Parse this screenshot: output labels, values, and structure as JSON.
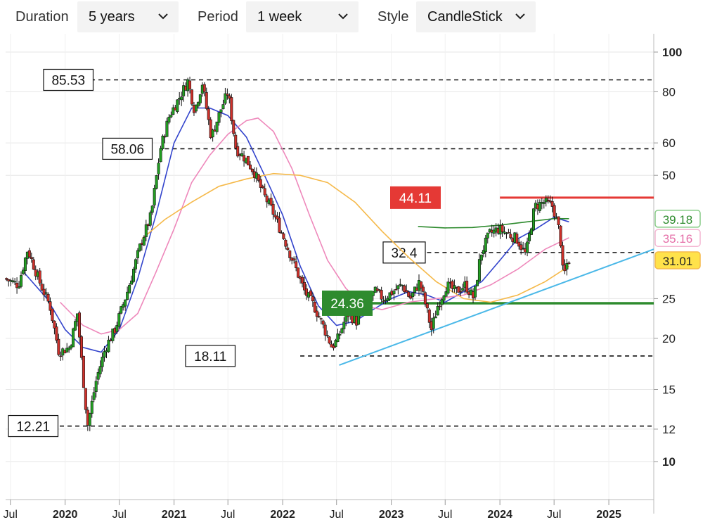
{
  "toolbar": {
    "duration": {
      "label": "Duration",
      "value": "5 years"
    },
    "period": {
      "label": "Period",
      "value": "1 week"
    },
    "style": {
      "label": "Style",
      "value": "CandleStick"
    }
  },
  "colors": {
    "up": "#22a022",
    "down": "#d0302a",
    "ma_short": "#3344cc",
    "ma_mid": "#ee88bb",
    "ma_long": "#f5b94a",
    "ma_xlong": "#2e8b2e",
    "trendline": "#4ab8e8",
    "resistance": "#e53935",
    "support": "#2e8b2e"
  },
  "chart_data": {
    "type": "candlestick",
    "y_scale": "log",
    "ylim": [
      10,
      100
    ],
    "y_ticks": [
      10,
      12,
      15,
      20,
      25,
      50,
      60,
      80,
      100
    ],
    "y_tick_labels": [
      "10",
      "12",
      "15",
      "20",
      "25",
      "50",
      "60",
      "80",
      "100"
    ],
    "x_range": [
      "2019-06-15",
      "2025-06-01"
    ],
    "x_ticks": [
      {
        "date": "2019-07-01",
        "label": "Jul",
        "bold": false
      },
      {
        "date": "2020-01-01",
        "label": "2020",
        "bold": true
      },
      {
        "date": "2020-07-01",
        "label": "Jul",
        "bold": false
      },
      {
        "date": "2021-01-01",
        "label": "2021",
        "bold": true
      },
      {
        "date": "2021-07-01",
        "label": "Jul",
        "bold": false
      },
      {
        "date": "2022-01-01",
        "label": "2022",
        "bold": true
      },
      {
        "date": "2022-07-01",
        "label": "Jul",
        "bold": false
      },
      {
        "date": "2023-01-01",
        "label": "2023",
        "bold": true
      },
      {
        "date": "2023-07-01",
        "label": "Jul",
        "bold": false
      },
      {
        "date": "2024-01-01",
        "label": "2024",
        "bold": true
      },
      {
        "date": "2024-07-01",
        "label": "Jul",
        "bold": false
      },
      {
        "date": "2025-01-01",
        "label": "2025",
        "bold": true
      }
    ],
    "price_path": [
      {
        "date": "2019-06-15",
        "price": 28
      },
      {
        "date": "2019-08-01",
        "price": 27
      },
      {
        "date": "2019-09-01",
        "price": 33
      },
      {
        "date": "2019-10-15",
        "price": 27
      },
      {
        "date": "2019-11-15",
        "price": 24
      },
      {
        "date": "2019-12-15",
        "price": 18.5
      },
      {
        "date": "2020-01-20",
        "price": 19
      },
      {
        "date": "2020-02-15",
        "price": 23
      },
      {
        "date": "2020-03-20",
        "price": 12.2
      },
      {
        "date": "2020-04-20",
        "price": 16
      },
      {
        "date": "2020-05-20",
        "price": 19
      },
      {
        "date": "2020-06-20",
        "price": 21
      },
      {
        "date": "2020-08-01",
        "price": 26
      },
      {
        "date": "2020-09-15",
        "price": 34
      },
      {
        "date": "2020-10-20",
        "price": 40
      },
      {
        "date": "2020-11-20",
        "price": 58
      },
      {
        "date": "2020-12-20",
        "price": 70
      },
      {
        "date": "2021-01-25",
        "price": 78
      },
      {
        "date": "2021-02-20",
        "price": 85
      },
      {
        "date": "2021-03-15",
        "price": 72
      },
      {
        "date": "2021-04-10",
        "price": 84
      },
      {
        "date": "2021-05-10",
        "price": 62
      },
      {
        "date": "2021-06-10",
        "price": 72
      },
      {
        "date": "2021-07-05",
        "price": 80
      },
      {
        "date": "2021-08-01",
        "price": 58
      },
      {
        "date": "2021-09-01",
        "price": 55
      },
      {
        "date": "2021-10-01",
        "price": 51
      },
      {
        "date": "2021-11-01",
        "price": 45
      },
      {
        "date": "2021-12-01",
        "price": 41
      },
      {
        "date": "2022-01-10",
        "price": 35
      },
      {
        "date": "2022-02-15",
        "price": 30
      },
      {
        "date": "2022-03-20",
        "price": 26
      },
      {
        "date": "2022-04-20",
        "price": 24
      },
      {
        "date": "2022-05-20",
        "price": 21.5
      },
      {
        "date": "2022-06-20",
        "price": 19
      },
      {
        "date": "2022-07-10",
        "price": 20
      },
      {
        "date": "2022-08-10",
        "price": 23
      },
      {
        "date": "2022-09-10",
        "price": 22
      },
      {
        "date": "2022-10-10",
        "price": 24
      },
      {
        "date": "2022-11-10",
        "price": 26
      },
      {
        "date": "2022-12-10",
        "price": 25
      },
      {
        "date": "2023-01-10",
        "price": 26
      },
      {
        "date": "2023-02-10",
        "price": 27
      },
      {
        "date": "2023-03-10",
        "price": 25
      },
      {
        "date": "2023-04-10",
        "price": 27.5
      },
      {
        "date": "2023-05-01",
        "price": 24
      },
      {
        "date": "2023-05-20",
        "price": 21
      },
      {
        "date": "2023-06-10",
        "price": 24
      },
      {
        "date": "2023-07-10",
        "price": 27
      },
      {
        "date": "2023-08-10",
        "price": 26
      },
      {
        "date": "2023-09-10",
        "price": 27
      },
      {
        "date": "2023-10-10",
        "price": 25
      },
      {
        "date": "2023-11-01",
        "price": 32
      },
      {
        "date": "2023-12-01",
        "price": 36
      },
      {
        "date": "2024-01-01",
        "price": 37
      },
      {
        "date": "2024-02-01",
        "price": 36
      },
      {
        "date": "2024-03-01",
        "price": 35
      },
      {
        "date": "2024-04-01",
        "price": 32
      },
      {
        "date": "2024-05-01",
        "price": 42
      },
      {
        "date": "2024-06-01",
        "price": 43
      },
      {
        "date": "2024-07-01",
        "price": 42
      },
      {
        "date": "2024-07-25",
        "price": 36
      },
      {
        "date": "2024-08-05",
        "price": 28
      },
      {
        "date": "2024-08-20",
        "price": 31
      }
    ],
    "moving_averages": [
      {
        "color_key": "ma_short",
        "points": [
          {
            "date": "2019-08-15",
            "price": 29
          },
          {
            "date": "2019-11-01",
            "price": 25
          },
          {
            "date": "2020-01-01",
            "price": 21
          },
          {
            "date": "2020-03-01",
            "price": 19
          },
          {
            "date": "2020-05-01",
            "price": 18.5
          },
          {
            "date": "2020-07-01",
            "price": 21
          },
          {
            "date": "2020-09-01",
            "price": 28
          },
          {
            "date": "2020-11-01",
            "price": 40
          },
          {
            "date": "2021-01-01",
            "price": 60
          },
          {
            "date": "2021-03-01",
            "price": 73
          },
          {
            "date": "2021-05-01",
            "price": 73
          },
          {
            "date": "2021-07-01",
            "price": 70
          },
          {
            "date": "2021-09-01",
            "price": 62
          },
          {
            "date": "2021-11-01",
            "price": 50
          },
          {
            "date": "2022-01-01",
            "price": 40
          },
          {
            "date": "2022-03-01",
            "price": 30
          },
          {
            "date": "2022-05-01",
            "price": 24
          },
          {
            "date": "2022-07-01",
            "price": 21.5
          },
          {
            "date": "2022-09-01",
            "price": 22
          },
          {
            "date": "2022-11-01",
            "price": 23.5
          },
          {
            "date": "2023-01-01",
            "price": 25
          },
          {
            "date": "2023-03-01",
            "price": 26
          },
          {
            "date": "2023-05-01",
            "price": 25.5
          },
          {
            "date": "2023-07-01",
            "price": 24.5
          },
          {
            "date": "2023-09-01",
            "price": 26
          },
          {
            "date": "2023-11-01",
            "price": 27.5
          },
          {
            "date": "2024-01-01",
            "price": 31
          },
          {
            "date": "2024-03-01",
            "price": 35
          },
          {
            "date": "2024-05-01",
            "price": 37
          },
          {
            "date": "2024-07-01",
            "price": 39.5
          },
          {
            "date": "2024-08-20",
            "price": 38.5
          }
        ]
      },
      {
        "color_key": "ma_mid",
        "points": [
          {
            "date": "2019-12-15",
            "price": 24.5
          },
          {
            "date": "2020-03-01",
            "price": 21.5
          },
          {
            "date": "2020-05-01",
            "price": 20.5
          },
          {
            "date": "2020-07-01",
            "price": 21
          },
          {
            "date": "2020-09-01",
            "price": 23
          },
          {
            "date": "2020-11-01",
            "price": 29
          },
          {
            "date": "2021-01-01",
            "price": 37
          },
          {
            "date": "2021-03-01",
            "price": 48
          },
          {
            "date": "2021-05-01",
            "price": 56
          },
          {
            "date": "2021-07-01",
            "price": 63
          },
          {
            "date": "2021-09-01",
            "price": 68
          },
          {
            "date": "2021-10-10",
            "price": 69
          },
          {
            "date": "2021-12-01",
            "price": 64
          },
          {
            "date": "2022-02-01",
            "price": 52
          },
          {
            "date": "2022-04-01",
            "price": 40
          },
          {
            "date": "2022-06-01",
            "price": 31
          },
          {
            "date": "2022-08-01",
            "price": 26.5
          },
          {
            "date": "2022-10-01",
            "price": 24
          },
          {
            "date": "2022-12-01",
            "price": 23.5
          },
          {
            "date": "2023-03-01",
            "price": 24.5
          },
          {
            "date": "2023-06-01",
            "price": 25
          },
          {
            "date": "2023-09-01",
            "price": 25.5
          },
          {
            "date": "2023-12-01",
            "price": 27
          },
          {
            "date": "2024-03-01",
            "price": 29.5
          },
          {
            "date": "2024-06-01",
            "price": 33
          },
          {
            "date": "2024-08-20",
            "price": 35.2
          }
        ]
      },
      {
        "color_key": "ma_long",
        "points": [
          {
            "date": "2020-09-15",
            "price": 35
          },
          {
            "date": "2020-12-01",
            "price": 39
          },
          {
            "date": "2021-03-01",
            "price": 43
          },
          {
            "date": "2021-06-01",
            "price": 47
          },
          {
            "date": "2021-09-01",
            "price": 49
          },
          {
            "date": "2021-12-01",
            "price": 50.5
          },
          {
            "date": "2022-03-01",
            "price": 50
          },
          {
            "date": "2022-06-01",
            "price": 48
          },
          {
            "date": "2022-09-01",
            "price": 43
          },
          {
            "date": "2022-12-01",
            "price": 36.5
          },
          {
            "date": "2023-03-01",
            "price": 31.5
          },
          {
            "date": "2023-06-01",
            "price": 27.5
          },
          {
            "date": "2023-09-01",
            "price": 25
          },
          {
            "date": "2023-12-01",
            "price": 24.5
          },
          {
            "date": "2024-03-01",
            "price": 25.5
          },
          {
            "date": "2024-06-01",
            "price": 27.5
          },
          {
            "date": "2024-08-20",
            "price": 30
          }
        ]
      },
      {
        "color_key": "ma_xlong",
        "points": [
          {
            "date": "2023-04-01",
            "price": 37.5
          },
          {
            "date": "2023-07-01",
            "price": 37.2
          },
          {
            "date": "2023-10-01",
            "price": 37.3
          },
          {
            "date": "2024-01-01",
            "price": 37.8
          },
          {
            "date": "2024-04-01",
            "price": 38.5
          },
          {
            "date": "2024-07-01",
            "price": 39.2
          },
          {
            "date": "2024-08-20",
            "price": 39.18
          }
        ]
      }
    ],
    "horizontal_levels": [
      {
        "price": 85.53,
        "label": "85.53",
        "style": "dashed",
        "from": "2020-03-01"
      },
      {
        "price": 58.06,
        "label": "58.06",
        "style": "dashed",
        "from": "2020-12-01"
      },
      {
        "price": 32.4,
        "label": "32.4",
        "style": "dashed",
        "from": "2023-05-01"
      },
      {
        "price": 18.11,
        "label": "18.11",
        "style": "dashed",
        "from": "2022-03-01"
      },
      {
        "price": 12.21,
        "label": "12.21",
        "style": "dashed",
        "from": "2019-09-01"
      }
    ],
    "resistance": {
      "price": 44.11,
      "label": "44.11",
      "from": "2024-01-01"
    },
    "support": {
      "price": 24.36,
      "label": "24.36",
      "from": "2022-08-01"
    },
    "trendline": {
      "start": {
        "date": "2022-07-10",
        "price": 17.2
      },
      "end": {
        "date": "2025-06-01",
        "price": 33
      }
    },
    "right_labels": [
      {
        "price": 39.18,
        "label": "39.18",
        "color_key": "ma_xlong",
        "border": "#88cc88",
        "bg": "#ffffff",
        "text": "#2e8b2e"
      },
      {
        "price": 35.16,
        "label": "35.16",
        "color_key": "ma_mid",
        "border": "#f4b6d2",
        "bg": "#ffffff",
        "text": "#e56fa8"
      },
      {
        "price": 31.01,
        "label": "31.01",
        "color_key": "ma_long",
        "border": "#f5b94a",
        "bg": "#ffe24a",
        "text": "#222222"
      }
    ]
  }
}
